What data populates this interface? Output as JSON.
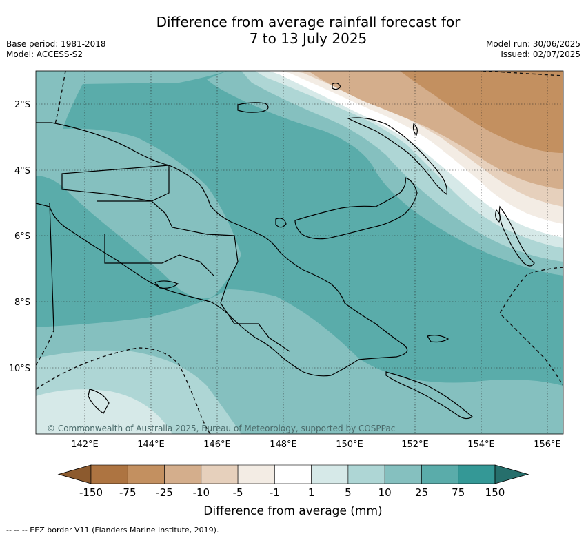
{
  "title": {
    "line1": "Difference from average rainfall forecast for",
    "line2": "7 to 13 July 2025"
  },
  "meta": {
    "base_period": "Base period: 1981-2018",
    "model": "Model: ACCESS-S2",
    "model_run": "Model run: 30/06/2025",
    "issued": "Issued: 02/07/2025"
  },
  "map": {
    "copyright": "© Commonwealth of Australia 2025, Bureau of Meteorology, supported by COSPPac",
    "lat_labels": [
      "2°S",
      "4°S",
      "6°S",
      "8°S",
      "10°S"
    ],
    "lon_labels": [
      "142°E",
      "144°E",
      "146°E",
      "148°E",
      "150°E",
      "152°E",
      "154°E",
      "156°E"
    ]
  },
  "colorbar": {
    "label": "Difference from average (mm)",
    "ticks": [
      "-150",
      "-75",
      "-25",
      "-10",
      "-5",
      "-1",
      "1",
      "5",
      "10",
      "25",
      "75",
      "150"
    ],
    "colors": [
      "#8c5a2e",
      "#ad7441",
      "#c39060",
      "#d4ae8c",
      "#e6d0bc",
      "#f3ece4",
      "#ffffff",
      "#d6e9e8",
      "#aed6d5",
      "#85c0bf",
      "#5aacaa",
      "#349896",
      "#266f6c"
    ]
  },
  "footer": {
    "legend_text": "-- -- -- EEZ border V11 (Flanders Marine Institute, 2019)."
  }
}
